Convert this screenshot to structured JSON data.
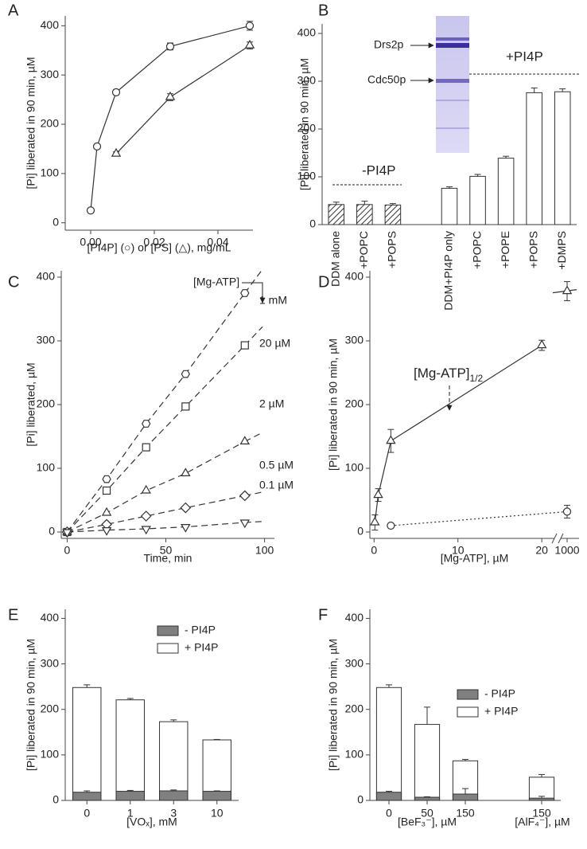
{
  "chart_data": [
    {
      "panel": "A",
      "type": "scatter",
      "xlabel": "[PI4P] (○) or [PS] (△), mg/mL",
      "ylabel": "[Pi] liberated in 90 min, µM",
      "xlim": [
        -0.008,
        0.051
      ],
      "xticks": [
        {
          "value": 0,
          "label": "0.00"
        },
        {
          "value": 0.02,
          "label": "0.02"
        },
        {
          "value": 0.04,
          "label": "0.04"
        }
      ],
      "ylim": [
        -15,
        420
      ],
      "yticks": [
        0,
        100,
        200,
        300,
        400
      ],
      "line": "solid",
      "series": [
        {
          "marker": "circle",
          "color": "#333333",
          "x": [
            0,
            0.002,
            0.008,
            0.025,
            0.05
          ],
          "values": [
            25,
            155,
            265,
            358,
            400
          ],
          "errors": [
            3,
            4,
            5,
            7,
            9
          ]
        },
        {
          "marker": "triangle",
          "color": "#333333",
          "x": [
            0.008,
            0.025,
            0.05
          ],
          "values": [
            140,
            255,
            360
          ],
          "errors": [
            4,
            7,
            7
          ]
        }
      ]
    },
    {
      "panel": "B",
      "type": "bar",
      "ylabel": "[Pi] liberated in 90 min, µM",
      "categories": [
        "DDM alone",
        "+POPC",
        "+POPS",
        null,
        "DDM+PI4P only",
        "+POPC",
        "+POPE",
        "+POPS",
        "+DMPS"
      ],
      "values": [
        42,
        42,
        41,
        null,
        76,
        101,
        139,
        276,
        278
      ],
      "errors": [
        5,
        7,
        3,
        null,
        3,
        4,
        4,
        10,
        6
      ],
      "color": "#ffffff",
      "ylim": [
        0,
        420
      ],
      "yticks": [
        0,
        100,
        200,
        300,
        400
      ],
      "annotations": [
        "-PI4P",
        "+PI4P"
      ],
      "gel_labels": [
        "Drs2p",
        "Cdc50p"
      ]
    },
    {
      "panel": "C",
      "type": "line",
      "xlabel": "Time, min",
      "ylabel": "[Pi] liberated, µM",
      "annotation": "[Mg-ATP]",
      "xlim": [
        -3,
        105
      ],
      "xticks": [
        0,
        50,
        100
      ],
      "ylim": [
        -10,
        410
      ],
      "yticks": [
        0,
        100,
        200,
        300,
        400
      ],
      "line": "dashed",
      "x": [
        0,
        20,
        40,
        60,
        90
      ],
      "series": [
        {
          "name": "1 mM",
          "marker": "hexagon",
          "color": "#333333",
          "values": [
            0,
            83,
            170,
            248,
            375
          ]
        },
        {
          "name": "20 µM",
          "marker": "square",
          "color": "#333333",
          "values": [
            0,
            65,
            133,
            197,
            293
          ]
        },
        {
          "name": "2 µM",
          "marker": "triangle",
          "color": "#333333",
          "values": [
            0,
            30,
            65,
            92,
            142
          ]
        },
        {
          "name": "0.5 µM",
          "marker": "diamond",
          "color": "#333333",
          "values": [
            0,
            12,
            25,
            38,
            57
          ]
        },
        {
          "name": "0.1 µM",
          "marker": "triangle-down",
          "color": "#333333",
          "values": [
            0,
            3,
            5,
            8,
            15
          ]
        }
      ]
    },
    {
      "panel": "D",
      "type": "scatter",
      "xlabel": "[Mg-ATP], µM",
      "ylabel": "[Pi] liberated in 90 min, µM",
      "annotation": "[Mg-ATP]",
      "annotation_sub": "1/2",
      "xlim": [
        -0.5,
        21.5
      ],
      "xticks": [
        0,
        10,
        20,
        1000
      ],
      "ylim": [
        -10,
        410
      ],
      "yticks": [
        0,
        100,
        200,
        300,
        400
      ],
      "x_break": true,
      "series": [
        {
          "marker": "triangle",
          "color": "#333333",
          "line": "solid",
          "x": [
            0.1,
            0.5,
            2,
            20,
            1000
          ],
          "values": [
            15,
            58,
            143,
            293,
            378
          ],
          "errors": [
            12,
            10,
            18,
            8,
            15
          ]
        },
        {
          "marker": "circle",
          "color": "#333333",
          "line": "dotted",
          "x": [
            2,
            1000
          ],
          "values": [
            10,
            32
          ],
          "errors": [
            2,
            10
          ]
        }
      ]
    },
    {
      "panel": "E",
      "type": "bar_overlay",
      "xlabels": [
        "[VOₓ], mM"
      ],
      "ylabel": "[Pi] liberated in 90 min, µM",
      "categories": [
        "0",
        "1",
        "3",
        "10"
      ],
      "ylim": [
        0,
        420
      ],
      "yticks": [
        0,
        100,
        200,
        300,
        400
      ],
      "legend": "upper right",
      "series": [
        {
          "name": "- PI4P",
          "color": "#808080",
          "values": [
            18,
            20,
            21,
            20
          ],
          "errors": [
            3,
            2,
            2,
            1
          ]
        },
        {
          "name": "+ PI4P",
          "color": "#ffffff",
          "values": [
            248,
            221,
            173,
            133
          ],
          "errors": [
            6,
            3,
            4,
            1
          ]
        }
      ]
    },
    {
      "panel": "F",
      "type": "bar_overlay",
      "xlabels": [
        "[BeF₃⁻], µM",
        "[AlF₄⁻], µM"
      ],
      "ylabel": "[Pi] liberated in 90 min, µM",
      "categories": [
        "0",
        "50",
        "150",
        null,
        "150"
      ],
      "ylim": [
        0,
        420
      ],
      "yticks": [
        0,
        100,
        200,
        300,
        400
      ],
      "legend": "center right",
      "series": [
        {
          "name": "- PI4P",
          "color": "#808080",
          "values": [
            18,
            7,
            14,
            null,
            5
          ],
          "errors": [
            2,
            1,
            12,
            null,
            4
          ]
        },
        {
          "name": "+ PI4P",
          "color": "#ffffff",
          "values": [
            248,
            167,
            87,
            null,
            51
          ],
          "errors": [
            6,
            38,
            3,
            null,
            6
          ]
        }
      ]
    }
  ]
}
